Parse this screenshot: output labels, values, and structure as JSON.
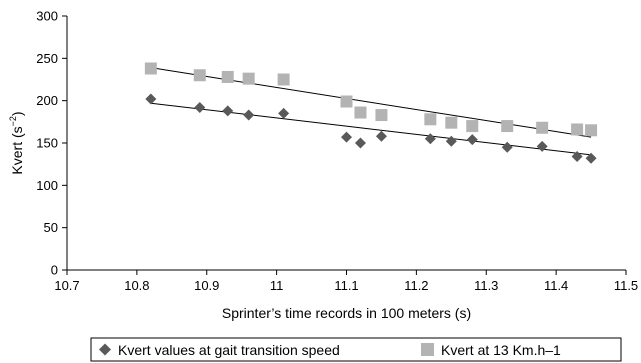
{
  "chart_data": {
    "type": "scatter",
    "xlabel": "Sprinter’s time records in 100 meters (s)",
    "ylabel_base": "Kvert (s",
    "ylabel_exp": "−2",
    "ylabel_close": ")",
    "xlim": [
      10.7,
      11.5
    ],
    "ylim": [
      0,
      300
    ],
    "x_ticks": [
      "10.7",
      "10.8",
      "10.9",
      "11",
      "11.1",
      "11.2",
      "11.3",
      "11.4",
      "11.5"
    ],
    "y_ticks": [
      "0",
      "50",
      "100",
      "150",
      "200",
      "250",
      "300"
    ],
    "grid": false,
    "legend_position": "bottom",
    "series": [
      {
        "name": "Kvert values at gait transition speed",
        "marker": "diamond",
        "color": "#595959",
        "x": [
          10.82,
          10.89,
          10.93,
          10.96,
          11.01,
          11.1,
          11.12,
          11.15,
          11.22,
          11.25,
          11.28,
          11.33,
          11.38,
          11.43,
          11.45
        ],
        "y": [
          202,
          192,
          188,
          183,
          185,
          157,
          150,
          158,
          155,
          152,
          154,
          145,
          146,
          134,
          132
        ],
        "trend": {
          "x0": 10.82,
          "y0": 197,
          "x1": 11.45,
          "y1": 136
        }
      },
      {
        "name": "Kvert at 13 Km.h–1",
        "marker": "square",
        "color": "#b3b3b3",
        "x": [
          10.82,
          10.89,
          10.93,
          10.96,
          11.01,
          11.1,
          11.12,
          11.15,
          11.22,
          11.25,
          11.28,
          11.33,
          11.38,
          11.43,
          11.45
        ],
        "y": [
          238,
          230,
          228,
          226,
          225,
          199,
          186,
          183,
          178,
          174,
          170,
          170,
          168,
          166,
          165
        ],
        "trend": {
          "x0": 10.82,
          "y0": 239,
          "x1": 11.45,
          "y1": 157
        }
      }
    ]
  }
}
